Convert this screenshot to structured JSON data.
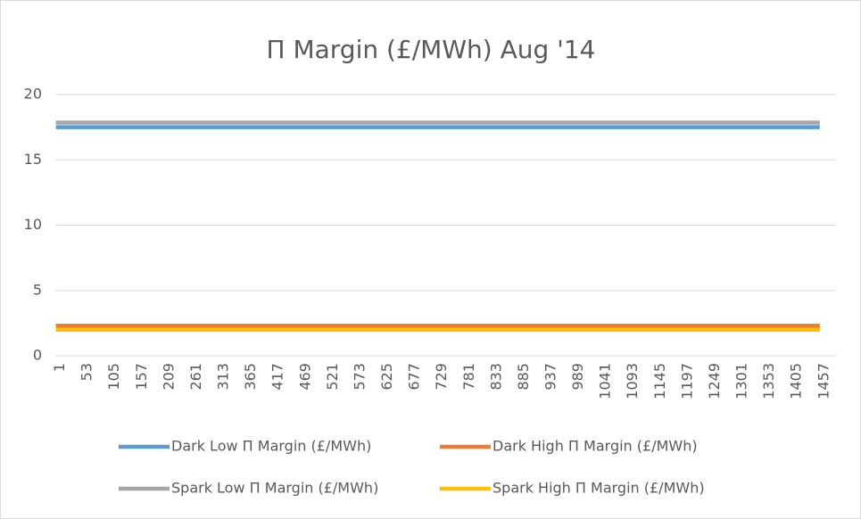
{
  "chart_data": {
    "type": "line",
    "title": "Π Margin (£/MWh) Aug '14",
    "x": [
      1,
      53,
      105,
      157,
      209,
      261,
      313,
      365,
      417,
      469,
      521,
      573,
      625,
      677,
      729,
      781,
      833,
      885,
      937,
      989,
      1041,
      1093,
      1145,
      1197,
      1249,
      1301,
      1353,
      1405,
      1457
    ],
    "xlim": [
      0,
      1488
    ],
    "xticks": [
      1,
      53,
      105,
      157,
      209,
      261,
      313,
      365,
      417,
      469,
      521,
      573,
      625,
      677,
      729,
      781,
      833,
      885,
      937,
      989,
      1041,
      1093,
      1145,
      1197,
      1249,
      1301,
      1353,
      1405,
      1457
    ],
    "ylim": [
      0,
      20
    ],
    "yticks": [
      0,
      5,
      10,
      15,
      20
    ],
    "grid": true,
    "legend": "bottom",
    "series": [
      {
        "name": "Dark Low Π Margin (£/MWh)",
        "color": "#5b9bd5",
        "values": [
          17.5,
          17.5,
          17.5,
          17.5,
          17.5,
          17.5,
          17.5,
          17.5,
          17.5,
          17.5,
          17.5,
          17.5,
          17.5,
          17.5,
          17.5,
          17.5,
          17.5,
          17.5,
          17.5,
          17.5,
          17.5,
          17.5,
          17.5,
          17.5,
          17.5,
          17.5,
          17.5,
          17.5,
          17.5
        ]
      },
      {
        "name": "Dark High Π Margin (£/MWh)",
        "color": "#ed7d31",
        "values": [
          2.3,
          2.3,
          2.3,
          2.3,
          2.3,
          2.3,
          2.3,
          2.3,
          2.3,
          2.3,
          2.3,
          2.3,
          2.3,
          2.3,
          2.3,
          2.3,
          2.3,
          2.3,
          2.3,
          2.3,
          2.3,
          2.3,
          2.3,
          2.3,
          2.3,
          2.3,
          2.3,
          2.3,
          2.3
        ]
      },
      {
        "name": "Spark Low Π Margin (£/MWh)",
        "color": "#a5a5a5",
        "values": [
          17.85,
          17.85,
          17.85,
          17.85,
          17.85,
          17.85,
          17.85,
          17.85,
          17.85,
          17.85,
          17.85,
          17.85,
          17.85,
          17.85,
          17.85,
          17.85,
          17.85,
          17.85,
          17.85,
          17.85,
          17.85,
          17.85,
          17.85,
          17.85,
          17.85,
          17.85,
          17.85,
          17.85,
          17.85
        ]
      },
      {
        "name": "Spark High Π Margin (£/MWh)",
        "color": "#ffc000",
        "values": [
          2.0,
          2.0,
          2.0,
          2.0,
          2.0,
          2.0,
          2.0,
          2.0,
          2.0,
          2.0,
          2.0,
          2.0,
          2.0,
          2.0,
          2.0,
          2.0,
          2.0,
          2.0,
          2.0,
          2.0,
          2.0,
          2.0,
          2.0,
          2.0,
          2.0,
          2.0,
          2.0,
          2.0,
          2.0
        ]
      }
    ]
  }
}
